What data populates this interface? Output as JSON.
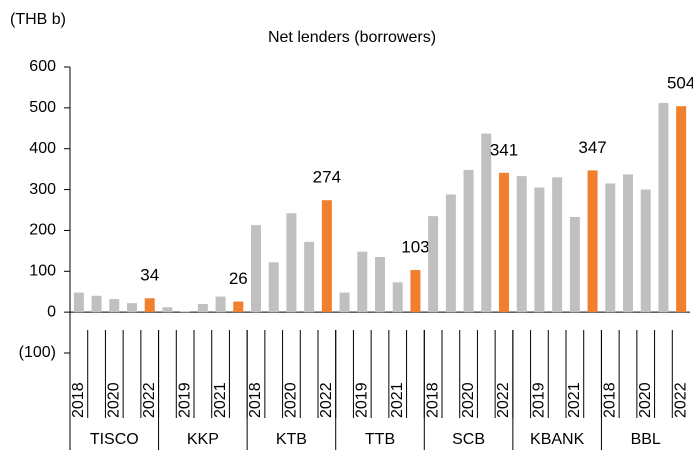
{
  "chart_data": {
    "type": "bar",
    "title": "Net lenders (borrowers)",
    "y_label": "(THB b)",
    "categories": [
      "2018",
      null,
      "2020",
      null,
      "2022",
      null,
      "2019",
      null,
      "2021",
      null,
      "2018",
      null,
      "2020",
      null,
      "2022",
      null,
      "2019",
      null,
      "2021",
      null,
      "2018",
      null,
      "2020",
      null,
      "2022",
      null,
      "2019",
      null,
      "2021",
      null,
      "2018",
      null,
      "2020",
      null,
      "2022"
    ],
    "groups": [
      {
        "label": "TISCO",
        "count": 5
      },
      {
        "label": "KKP",
        "count": 5
      },
      {
        "label": "KTB",
        "count": 5
      },
      {
        "label": "TTB",
        "count": 5
      },
      {
        "label": "SCB",
        "count": 5
      },
      {
        "label": "KBANK",
        "count": 5
      },
      {
        "label": "BBL",
        "count": 5
      }
    ],
    "values": [
      48,
      40,
      32,
      22,
      34,
      12,
      2,
      20,
      38,
      26,
      213,
      122,
      242,
      172,
      274,
      48,
      148,
      135,
      73,
      103,
      235,
      288,
      348,
      437,
      341,
      333,
      305,
      330,
      233,
      347,
      315,
      337,
      300,
      512,
      504
    ],
    "value_labels": [
      null,
      null,
      null,
      null,
      "34",
      null,
      null,
      null,
      null,
      "26",
      null,
      null,
      null,
      null,
      "274",
      null,
      null,
      null,
      null,
      "103",
      null,
      null,
      null,
      null,
      "341",
      null,
      null,
      null,
      null,
      "347",
      null,
      null,
      null,
      null,
      "504"
    ],
    "colors": [
      "#c0c0c0",
      "#c0c0c0",
      "#c0c0c0",
      "#c0c0c0",
      "#f07f2e",
      "#c0c0c0",
      "#c0c0c0",
      "#c0c0c0",
      "#c0c0c0",
      "#f07f2e",
      "#c0c0c0",
      "#c0c0c0",
      "#c0c0c0",
      "#c0c0c0",
      "#f07f2e",
      "#c0c0c0",
      "#c0c0c0",
      "#c0c0c0",
      "#c0c0c0",
      "#f07f2e",
      "#c0c0c0",
      "#c0c0c0",
      "#c0c0c0",
      "#c0c0c0",
      "#f07f2e",
      "#c0c0c0",
      "#c0c0c0",
      "#c0c0c0",
      "#c0c0c0",
      "#f07f2e",
      "#c0c0c0",
      "#c0c0c0",
      "#c0c0c0",
      "#c0c0c0",
      "#f07f2e"
    ],
    "ylim": [
      -100,
      600
    ],
    "yticks": [
      {
        "value": -100,
        "label": "(100)"
      },
      0,
      100,
      200,
      300,
      400,
      500,
      600
    ],
    "grid": false
  }
}
